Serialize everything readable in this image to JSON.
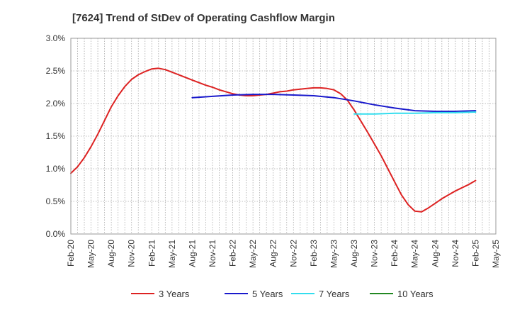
{
  "chart_data": {
    "type": "line",
    "title": "[7624]  Trend of StDev of Operating Cashflow Margin",
    "xlabel": "",
    "ylabel": "",
    "x_ticks": [
      "Feb-20",
      "May-20",
      "Aug-20",
      "Nov-20",
      "Feb-21",
      "May-21",
      "Aug-21",
      "Nov-21",
      "Feb-22",
      "May-22",
      "Aug-22",
      "Nov-22",
      "Feb-23",
      "May-23",
      "Aug-23",
      "Nov-23",
      "Feb-24",
      "May-24",
      "Aug-24",
      "Nov-24",
      "Feb-25",
      "May-25"
    ],
    "y_ticks": [
      "0.0%",
      "0.5%",
      "1.0%",
      "1.5%",
      "2.0%",
      "2.5%",
      "3.0%"
    ],
    "ylim": [
      0,
      3.0
    ],
    "grid": true,
    "legend_position": "bottom",
    "series": [
      {
        "name": "3 Years",
        "color": "#dd2222",
        "points": [
          [
            "Feb-20",
            0.93
          ],
          [
            "Mar-20",
            1.03
          ],
          [
            "Apr-20",
            1.17
          ],
          [
            "May-20",
            1.34
          ],
          [
            "Jun-20",
            1.53
          ],
          [
            "Jul-20",
            1.74
          ],
          [
            "Aug-20",
            1.95
          ],
          [
            "Sep-20",
            2.12
          ],
          [
            "Oct-20",
            2.26
          ],
          [
            "Nov-20",
            2.37
          ],
          [
            "Dec-20",
            2.44
          ],
          [
            "Jan-21",
            2.49
          ],
          [
            "Feb-21",
            2.53
          ],
          [
            "Mar-21",
            2.54
          ],
          [
            "Apr-21",
            2.52
          ],
          [
            "May-21",
            2.48
          ],
          [
            "Jun-21",
            2.44
          ],
          [
            "Jul-21",
            2.4
          ],
          [
            "Aug-21",
            2.36
          ],
          [
            "Sep-21",
            2.32
          ],
          [
            "Oct-21",
            2.28
          ],
          [
            "Nov-21",
            2.25
          ],
          [
            "Dec-21",
            2.21
          ],
          [
            "Jan-22",
            2.18
          ],
          [
            "Feb-22",
            2.15
          ],
          [
            "Mar-22",
            2.13
          ],
          [
            "Apr-22",
            2.12
          ],
          [
            "May-22",
            2.12
          ],
          [
            "Jun-22",
            2.13
          ],
          [
            "Jul-22",
            2.14
          ],
          [
            "Aug-22",
            2.16
          ],
          [
            "Sep-22",
            2.18
          ],
          [
            "Oct-22",
            2.19
          ],
          [
            "Nov-22",
            2.21
          ],
          [
            "Dec-22",
            2.22
          ],
          [
            "Jan-23",
            2.23
          ],
          [
            "Feb-23",
            2.24
          ],
          [
            "Mar-23",
            2.24
          ],
          [
            "Apr-23",
            2.23
          ],
          [
            "May-23",
            2.21
          ],
          [
            "Jun-23",
            2.15
          ],
          [
            "Jul-23",
            2.05
          ],
          [
            "Aug-23",
            1.9
          ],
          [
            "Sep-23",
            1.73
          ],
          [
            "Oct-23",
            1.56
          ],
          [
            "Nov-23",
            1.38
          ],
          [
            "Dec-23",
            1.2
          ],
          [
            "Jan-24",
            1.0
          ],
          [
            "Feb-24",
            0.8
          ],
          [
            "Mar-24",
            0.6
          ],
          [
            "Apr-24",
            0.45
          ],
          [
            "May-24",
            0.35
          ],
          [
            "Jun-24",
            0.34
          ],
          [
            "Jul-24",
            0.4
          ],
          [
            "Aug-24",
            0.47
          ],
          [
            "Sep-24",
            0.54
          ],
          [
            "Oct-24",
            0.6
          ],
          [
            "Nov-24",
            0.66
          ],
          [
            "Dec-24",
            0.71
          ],
          [
            "Jan-25",
            0.76
          ],
          [
            "Feb-25",
            0.82
          ]
        ]
      },
      {
        "name": "5 Years",
        "color": "#1a1acc",
        "points": [
          [
            "Aug-21",
            2.09
          ],
          [
            "Nov-21",
            2.11
          ],
          [
            "Feb-22",
            2.13
          ],
          [
            "May-22",
            2.14
          ],
          [
            "Aug-22",
            2.14
          ],
          [
            "Nov-22",
            2.13
          ],
          [
            "Feb-23",
            2.12
          ],
          [
            "May-23",
            2.09
          ],
          [
            "Aug-23",
            2.04
          ],
          [
            "Nov-23",
            1.98
          ],
          [
            "Feb-24",
            1.93
          ],
          [
            "May-24",
            1.89
          ],
          [
            "Aug-24",
            1.88
          ],
          [
            "Nov-24",
            1.88
          ],
          [
            "Feb-25",
            1.89
          ]
        ]
      },
      {
        "name": "7 Years",
        "color": "#33ddee",
        "points": [
          [
            "Aug-23",
            1.84
          ],
          [
            "Nov-23",
            1.84
          ],
          [
            "Feb-24",
            1.85
          ],
          [
            "May-24",
            1.85
          ],
          [
            "Aug-24",
            1.86
          ],
          [
            "Nov-24",
            1.86
          ],
          [
            "Feb-25",
            1.87
          ]
        ]
      },
      {
        "name": "10 Years",
        "color": "#228822",
        "points": []
      }
    ]
  }
}
